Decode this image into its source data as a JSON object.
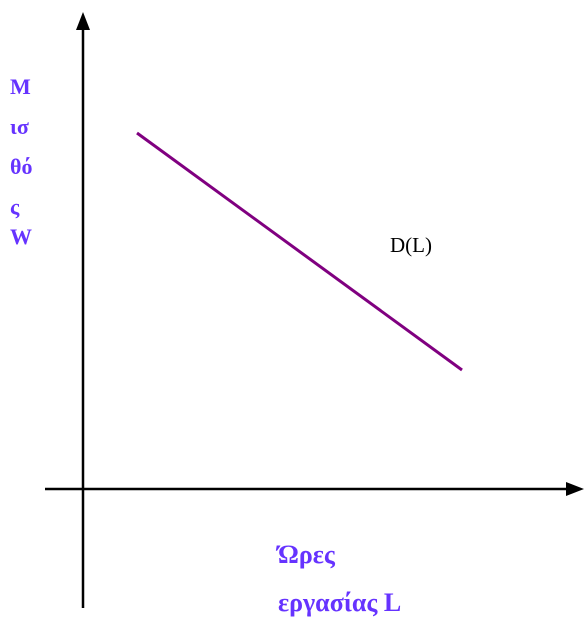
{
  "colors": {
    "axis": "#000000",
    "curve": "#800080",
    "label": "#6633ff",
    "curve_label": "#000000"
  },
  "y_axis": {
    "label_lines": [
      "Μ",
      "ισ",
      "θό",
      "ς",
      "W"
    ]
  },
  "x_axis": {
    "label_lines": [
      "Ώρες",
      "εργασίας L"
    ]
  },
  "curve": {
    "label": "D(L)",
    "slope": "negative"
  }
}
